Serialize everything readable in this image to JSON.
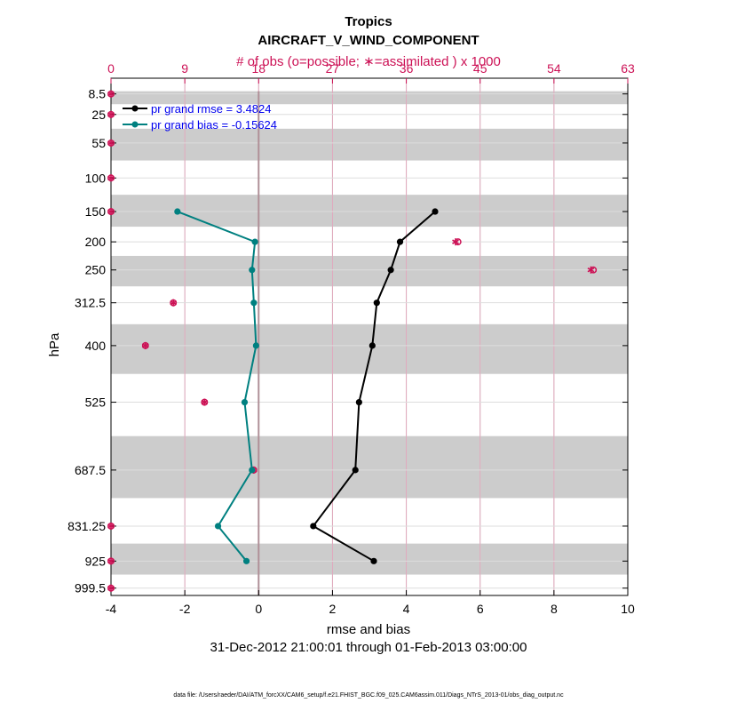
{
  "chart_data": {
    "type": "line",
    "title": "Tropics",
    "subtitle": "AIRCRAFT_V_WIND_COMPONENT",
    "top_axis_label": "# of obs (o=possible; ∗=assimilated ) x 1000",
    "xlabel": "rmse and bias",
    "ylabel": "hPa",
    "date_range": "31-Dec-2012 21:00:01 through 01-Feb-2013 03:00:00",
    "footnote": "data file: /Users/raeder/DAI/ATM_forcXX/CAM6_setup/f.e21.FHIST_BGC.f09_025.CAM6assim.011/Diags_NTrS_2013-01/obs_diag_output.nc",
    "xlim": [
      -4,
      10
    ],
    "x_ticks": [
      "-4",
      "-2",
      "0",
      "2",
      "4",
      "6",
      "8",
      "10"
    ],
    "top_xlim": [
      0,
      63
    ],
    "top_ticks": [
      "0",
      "9",
      "18",
      "27",
      "36",
      "45",
      "54",
      "63"
    ],
    "levels": [
      "8.5",
      "25",
      "55",
      "100",
      "150",
      "200",
      "250",
      "312.5",
      "400",
      "525",
      "687.5",
      "831.25",
      "925",
      "999.5"
    ],
    "series": [
      {
        "name": "pr grand rmse = 3.4824",
        "color": "#000000",
        "levels": [
          "150",
          "200",
          "250",
          "312.5",
          "400",
          "525",
          "687.5",
          "831.25",
          "925"
        ],
        "values": [
          4.78,
          3.83,
          3.58,
          3.2,
          3.08,
          2.72,
          2.62,
          1.48,
          3.12
        ]
      },
      {
        "name": "pr grand bias = -0.15624",
        "color": "#008080",
        "levels": [
          "150",
          "200",
          "250",
          "312.5",
          "400",
          "525",
          "687.5",
          "831.25",
          "925"
        ],
        "values": [
          -2.2,
          -0.1,
          -0.18,
          -0.13,
          -0.07,
          -0.38,
          -0.18,
          -1.1,
          -0.33
        ]
      }
    ],
    "obs_counts": {
      "color": "#cc1155",
      "levels": [
        "8.5",
        "25",
        "55",
        "100",
        "150",
        "200",
        "250",
        "312.5",
        "400",
        "525",
        "687.5",
        "831.25",
        "925",
        "999.5"
      ],
      "possible": [
        0,
        0,
        0,
        0,
        0,
        42.3,
        58.8,
        7.6,
        4.2,
        11.4,
        17.4,
        0,
        0,
        0
      ],
      "assimilated": [
        0,
        0,
        0,
        0,
        0,
        42.0,
        58.5,
        7.6,
        4.2,
        11.4,
        17.4,
        0,
        0,
        0
      ]
    },
    "shaded_level_bands": [
      "8.5",
      "55",
      "150",
      "250",
      "400",
      "687.5",
      "925"
    ],
    "grid": true
  }
}
